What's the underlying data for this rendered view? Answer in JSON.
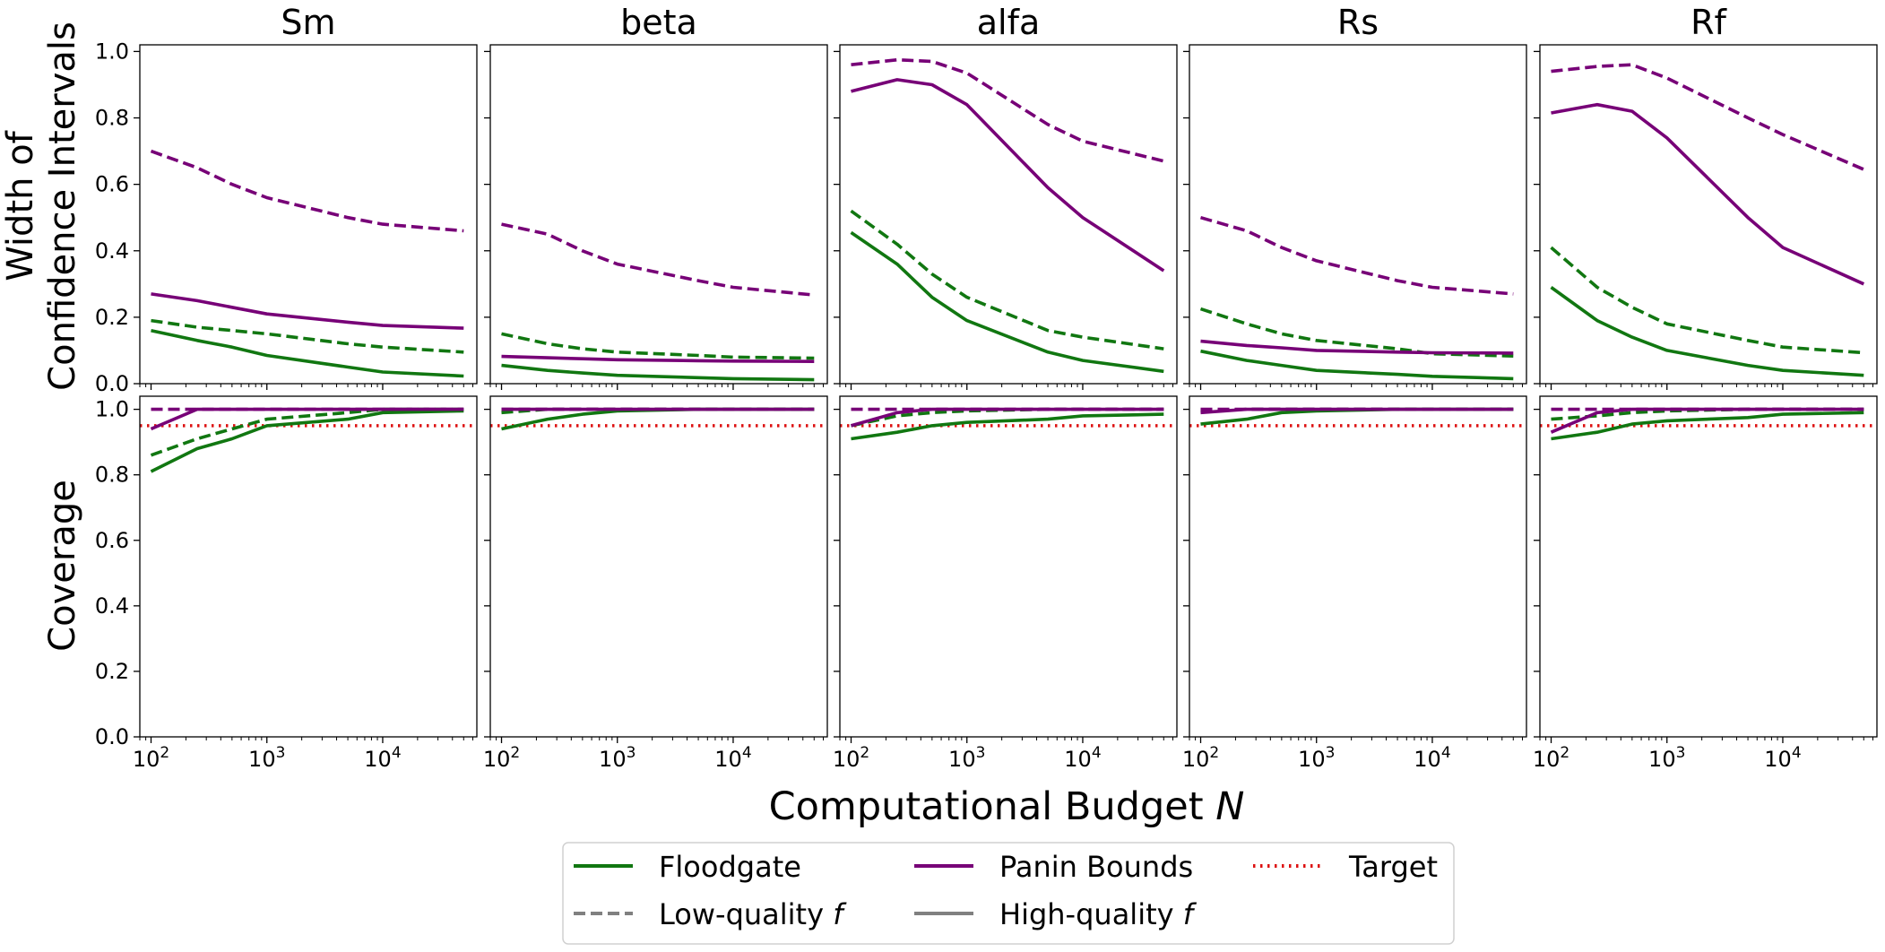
{
  "chart_data": {
    "type": "line",
    "xlabel": "Computational Budget",
    "xlabel_var": "N",
    "xscale": "log",
    "xlim": [
      80,
      65000
    ],
    "x": [
      100,
      250,
      500,
      1000,
      5000,
      10000,
      50000
    ],
    "xticks": [
      {
        "value": 100,
        "base": "10",
        "exp": "2"
      },
      {
        "value": 1000,
        "base": "10",
        "exp": "3"
      },
      {
        "value": 10000,
        "base": "10",
        "exp": "4"
      }
    ],
    "yticks": [
      "0.0",
      "0.2",
      "0.4",
      "0.6",
      "0.8",
      "1.0"
    ],
    "rows": [
      {
        "key": "width",
        "ylabel_lines": [
          "Width of",
          "Confidence Intervals"
        ],
        "ylim": [
          0,
          1.02
        ]
      },
      {
        "key": "coverage",
        "ylabel_lines": [
          "Coverage"
        ],
        "ylim": [
          0,
          1.04
        ]
      }
    ],
    "target": 0.95,
    "colors": {
      "floodgate": "#117711",
      "panin": "#770077",
      "target": "#dd1111",
      "legend_gray": "#808080"
    },
    "panels": [
      {
        "title": "Sm",
        "width": {
          "floodgate_low": [
            0.19,
            0.17,
            0.16,
            0.15,
            0.12,
            0.11,
            0.095
          ],
          "floodgate_high": [
            0.16,
            0.13,
            0.11,
            0.085,
            0.05,
            0.035,
            0.023
          ],
          "panin_low": [
            0.7,
            0.65,
            0.6,
            0.56,
            0.5,
            0.48,
            0.46
          ],
          "panin_high": [
            0.27,
            0.25,
            0.23,
            0.21,
            0.185,
            0.175,
            0.167
          ]
        },
        "coverage": {
          "floodgate_low": [
            0.86,
            0.91,
            0.94,
            0.97,
            0.99,
            1.0,
            1.0
          ],
          "floodgate_high": [
            0.81,
            0.88,
            0.91,
            0.95,
            0.97,
            0.99,
            0.995
          ],
          "panin_low": [
            1.0,
            1.0,
            1.0,
            1.0,
            1.0,
            1.0,
            1.0
          ],
          "panin_high": [
            0.94,
            1.0,
            1.0,
            1.0,
            1.0,
            1.0,
            1.0
          ]
        }
      },
      {
        "title": "beta",
        "width": {
          "floodgate_low": [
            0.15,
            0.12,
            0.105,
            0.095,
            0.085,
            0.08,
            0.077
          ],
          "floodgate_high": [
            0.055,
            0.04,
            0.032,
            0.025,
            0.018,
            0.015,
            0.012
          ],
          "panin_low": [
            0.48,
            0.45,
            0.4,
            0.36,
            0.31,
            0.29,
            0.267
          ],
          "panin_high": [
            0.082,
            0.078,
            0.075,
            0.072,
            0.069,
            0.068,
            0.067
          ]
        },
        "coverage": {
          "floodgate_low": [
            0.99,
            1.0,
            1.0,
            1.0,
            1.0,
            1.0,
            1.0
          ],
          "floodgate_high": [
            0.94,
            0.97,
            0.985,
            0.995,
            1.0,
            1.0,
            1.0
          ],
          "panin_low": [
            1.0,
            1.0,
            1.0,
            1.0,
            1.0,
            1.0,
            1.0
          ],
          "panin_high": [
            1.0,
            1.0,
            1.0,
            1.0,
            1.0,
            1.0,
            1.0
          ]
        }
      },
      {
        "title": "alfa",
        "width": {
          "floodgate_low": [
            0.52,
            0.42,
            0.33,
            0.26,
            0.16,
            0.14,
            0.105
          ],
          "floodgate_high": [
            0.455,
            0.36,
            0.26,
            0.19,
            0.095,
            0.07,
            0.037
          ],
          "panin_low": [
            0.96,
            0.975,
            0.97,
            0.935,
            0.78,
            0.73,
            0.67
          ],
          "panin_high": [
            0.88,
            0.915,
            0.9,
            0.84,
            0.59,
            0.5,
            0.34
          ]
        },
        "coverage": {
          "floodgate_low": [
            0.95,
            0.98,
            0.99,
            0.995,
            1.0,
            1.0,
            1.0
          ],
          "floodgate_high": [
            0.91,
            0.93,
            0.95,
            0.96,
            0.97,
            0.98,
            0.985
          ],
          "panin_low": [
            1.0,
            1.0,
            1.0,
            1.0,
            1.0,
            1.0,
            1.0
          ],
          "panin_high": [
            0.95,
            0.99,
            1.0,
            1.0,
            1.0,
            1.0,
            1.0
          ]
        }
      },
      {
        "title": "Rs",
        "width": {
          "floodgate_low": [
            0.225,
            0.18,
            0.15,
            0.13,
            0.105,
            0.09,
            0.083
          ],
          "floodgate_high": [
            0.098,
            0.07,
            0.055,
            0.04,
            0.028,
            0.022,
            0.015
          ],
          "panin_low": [
            0.5,
            0.46,
            0.41,
            0.37,
            0.31,
            0.29,
            0.27
          ],
          "panin_high": [
            0.128,
            0.115,
            0.108,
            0.1,
            0.095,
            0.093,
            0.092
          ]
        },
        "coverage": {
          "floodgate_low": [
            0.995,
            1.0,
            1.0,
            1.0,
            1.0,
            1.0,
            1.0
          ],
          "floodgate_high": [
            0.955,
            0.97,
            0.99,
            0.995,
            1.0,
            1.0,
            1.0
          ],
          "panin_low": [
            1.0,
            1.0,
            1.0,
            1.0,
            1.0,
            1.0,
            1.0
          ],
          "panin_high": [
            0.99,
            1.0,
            1.0,
            1.0,
            1.0,
            1.0,
            1.0
          ]
        }
      },
      {
        "title": "Rf",
        "width": {
          "floodgate_low": [
            0.41,
            0.29,
            0.23,
            0.18,
            0.13,
            0.11,
            0.093
          ],
          "floodgate_high": [
            0.29,
            0.19,
            0.14,
            0.1,
            0.055,
            0.04,
            0.025
          ],
          "panin_low": [
            0.94,
            0.955,
            0.96,
            0.92,
            0.8,
            0.75,
            0.645
          ],
          "panin_high": [
            0.815,
            0.84,
            0.82,
            0.74,
            0.5,
            0.41,
            0.3
          ]
        },
        "coverage": {
          "floodgate_low": [
            0.97,
            0.98,
            0.99,
            0.995,
            1.0,
            1.0,
            1.0
          ],
          "floodgate_high": [
            0.91,
            0.93,
            0.955,
            0.965,
            0.975,
            0.985,
            0.99
          ],
          "panin_low": [
            1.0,
            1.0,
            1.0,
            1.0,
            1.0,
            1.0,
            1.0
          ],
          "panin_high": [
            0.93,
            0.99,
            1.0,
            1.0,
            1.0,
            1.0,
            1.0
          ]
        }
      }
    ],
    "legend": {
      "placement": "bottom-center",
      "entries": [
        {
          "key": "floodgate",
          "label": "Floodgate",
          "label_var": ""
        },
        {
          "key": "panin",
          "label": "Panin Bounds",
          "label_var": ""
        },
        {
          "key": "target",
          "label": "Target",
          "label_var": ""
        },
        {
          "key": "low",
          "label": "Low-quality",
          "label_var": "f"
        },
        {
          "key": "high",
          "label": "High-quality",
          "label_var": "f"
        }
      ]
    }
  }
}
